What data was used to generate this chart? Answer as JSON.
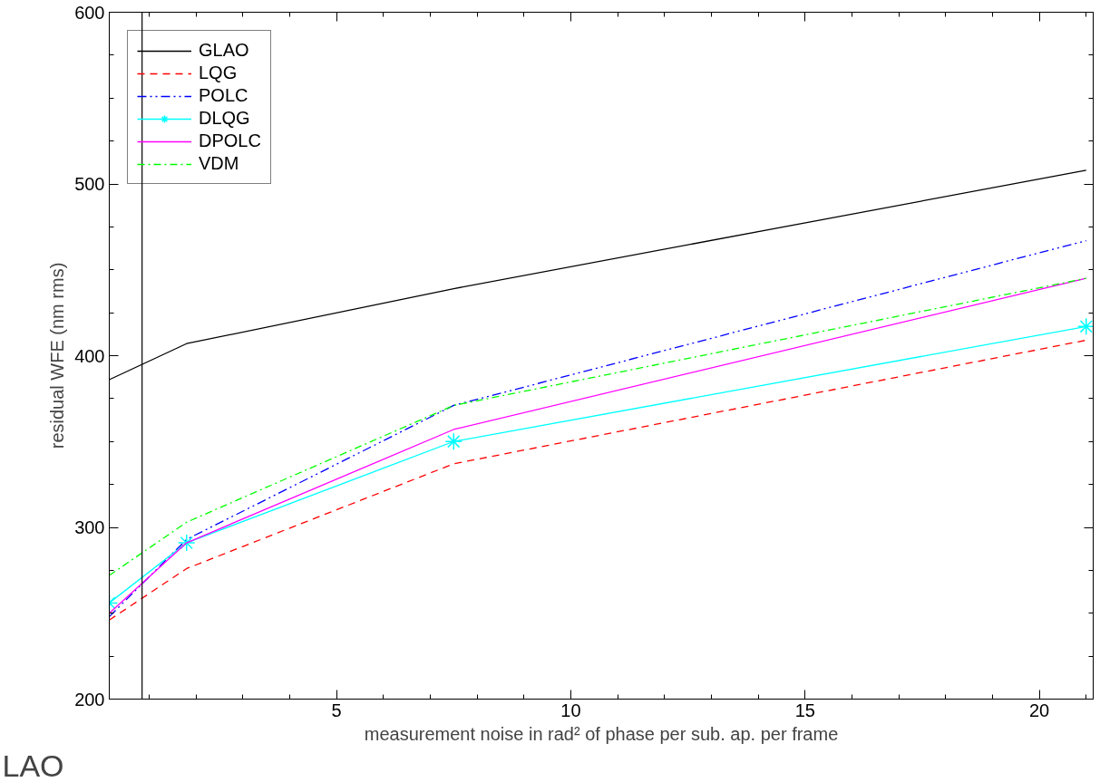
{
  "chart_data": {
    "type": "line",
    "xlabel": "measurement noise in rad² of phase per sub. ap. per frame",
    "ylabel": "residual WFE (nm rms)",
    "x": [
      0.15,
      1.8,
      7.5,
      21.0
    ],
    "series": [
      {
        "name": "GLAO",
        "color": "#000000",
        "line_style": "solid",
        "values": [
          386,
          407,
          439,
          508
        ]
      },
      {
        "name": "LQG",
        "color": "#ff0000",
        "line_style": "dashed",
        "values": [
          246,
          276,
          337,
          409
        ]
      },
      {
        "name": "POLC",
        "color": "#0000ff",
        "line_style": "dashdotdot",
        "values": [
          248,
          293,
          371,
          467
        ]
      },
      {
        "name": "DLQG",
        "color": "#00ffff",
        "line_style": "solid",
        "marker": "cross",
        "values": [
          256,
          291,
          350,
          417
        ]
      },
      {
        "name": "DPOLC",
        "color": "#ff00ff",
        "line_style": "solid",
        "values": [
          250,
          291,
          357,
          445
        ]
      },
      {
        "name": "VDM",
        "color": "#00ff00",
        "line_style": "dashdot",
        "values": [
          272,
          303,
          371,
          445
        ]
      }
    ],
    "xlim": [
      0.15,
      21.15
    ],
    "ylim": [
      200,
      600
    ],
    "xticks": [
      5,
      10,
      15,
      20
    ],
    "yticks": [
      200,
      300,
      400,
      500,
      600
    ],
    "ref_lines": [
      {
        "axis": "x",
        "value": 0.85,
        "color": "#000000"
      }
    ],
    "legend": "top left",
    "grid": false,
    "annotations": [
      "LAO"
    ]
  }
}
